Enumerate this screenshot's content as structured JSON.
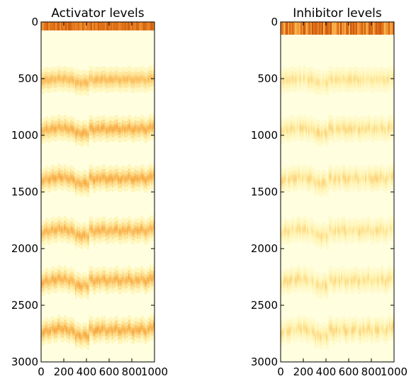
{
  "chart_data": [
    {
      "type": "heatmap",
      "title": "Activator levels",
      "xlim": [
        0,
        1000
      ],
      "ylim": [
        3000,
        0
      ],
      "xticks": [
        0,
        200,
        400,
        600,
        800,
        1000
      ],
      "yticks": [
        0,
        500,
        1000,
        1500,
        2000,
        2500,
        3000
      ],
      "colormap": [
        "#ffffe0",
        "#fff3b0",
        "#fdd27a",
        "#f7a841",
        "#e2741a",
        "#b94408"
      ],
      "pattern": {
        "band_rows": [
          40,
          520,
          960,
          1400,
          1860,
          2300,
          2740
        ],
        "band_growth": [
          0.0,
          0.55,
          0.75,
          0.85,
          0.9,
          0.95,
          1.0
        ],
        "band_color_level": [
          0.0,
          0.55,
          0.62,
          0.62,
          0.6,
          0.6,
          0.62
        ],
        "top_edge_row": 0,
        "top_edge_level": 0.9
      }
    },
    {
      "type": "heatmap",
      "title": "Inhibitor levels",
      "xlim": [
        0,
        1000
      ],
      "ylim": [
        3000,
        0
      ],
      "xticks": [
        0,
        200,
        400,
        600,
        800,
        1000
      ],
      "yticks": [
        0,
        500,
        1000,
        1500,
        2000,
        2500,
        3000
      ],
      "colormap": [
        "#ffffe0",
        "#fff3b0",
        "#fdd27a",
        "#f7a841",
        "#e2741a",
        "#b94408"
      ],
      "pattern": {
        "band_rows": [
          40,
          520,
          960,
          1400,
          1860,
          2300,
          2740
        ],
        "band_growth": [
          0.0,
          0.55,
          0.75,
          0.85,
          0.9,
          0.95,
          1.0
        ],
        "band_color_level": [
          0.0,
          0.38,
          0.42,
          0.42,
          0.4,
          0.4,
          0.42
        ],
        "top_edge_row": 0,
        "top_edge_level": 0.95
      }
    }
  ]
}
